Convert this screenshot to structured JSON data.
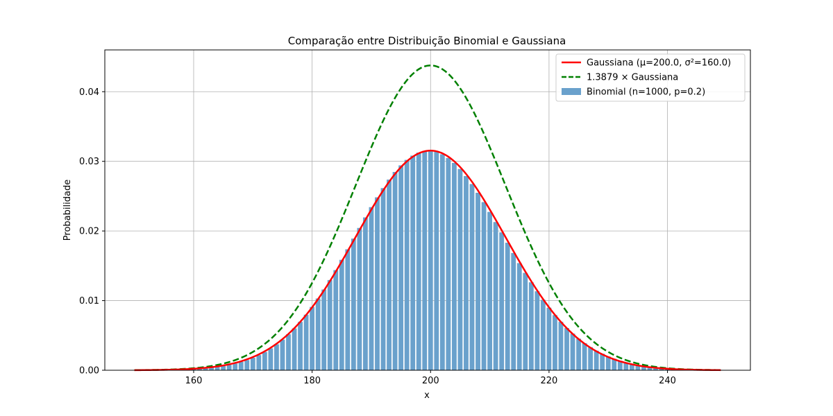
{
  "chart_data": {
    "type": "bar",
    "title": "Comparação entre Distribuição Binomial e Gaussiana",
    "xlabel": "x",
    "ylabel": "Probabilidade",
    "xlim": [
      145,
      254
    ],
    "ylim": [
      0,
      0.046
    ],
    "x_ticks": [
      160,
      180,
      200,
      220,
      240
    ],
    "y_ticks": [
      0.0,
      0.01,
      0.02,
      0.03,
      0.04
    ],
    "x_tick_labels": [
      "160",
      "180",
      "200",
      "220",
      "240"
    ],
    "y_tick_labels": [
      "0.00",
      "0.01",
      "0.02",
      "0.03",
      "0.04"
    ],
    "grid": true,
    "legend_position": "top-right",
    "binomial": {
      "n": 1000,
      "p": 0.2,
      "x_min": 150,
      "x_max": 249
    },
    "gaussian": {
      "mu": 200.0,
      "sigma2": 160.0,
      "x_min": 150,
      "x_max": 249
    },
    "scale_factor": 1.3879,
    "series": [
      {
        "name": "Gaussiana (μ=200.0, σ²=160.0)",
        "kind": "line",
        "color": "#ff0000",
        "style": "solid"
      },
      {
        "name": "1.3879 × Gaussiana",
        "kind": "line",
        "color": "#008000",
        "style": "dashed"
      },
      {
        "name": "Binomial (n=1000, p=0.2)",
        "kind": "bar",
        "color": "#6aa1cc",
        "style": "solid"
      }
    ]
  }
}
